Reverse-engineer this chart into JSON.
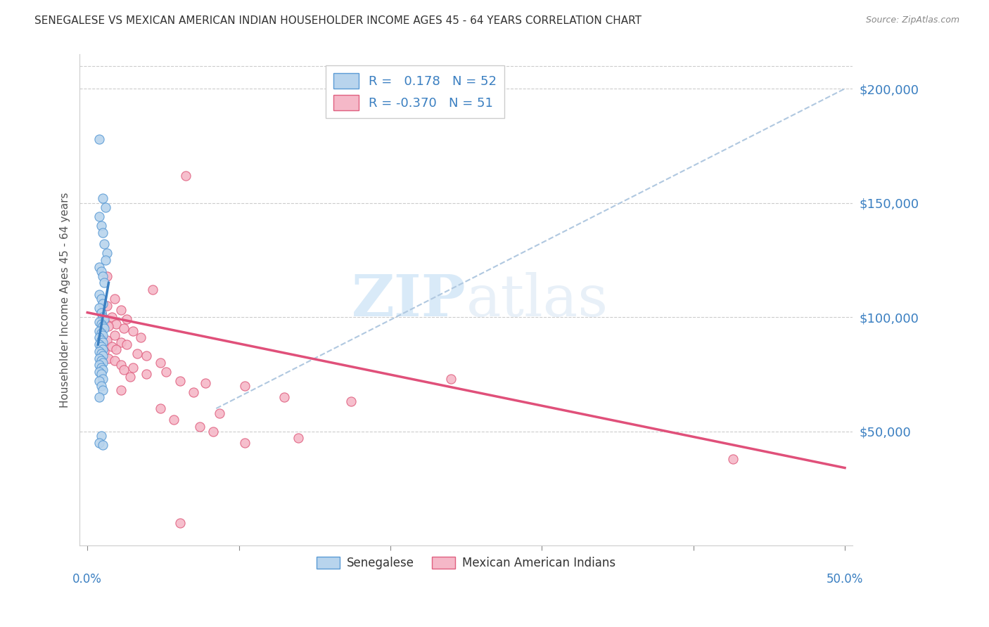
{
  "title": "SENEGALESE VS MEXICAN AMERICAN INDIAN HOUSEHOLDER INCOME AGES 45 - 64 YEARS CORRELATION CHART",
  "source": "Source: ZipAtlas.com",
  "ylabel": "Householder Income Ages 45 - 64 years",
  "ytick_values": [
    50000,
    100000,
    150000,
    200000
  ],
  "legend_blue_R": "0.178",
  "legend_blue_N": "52",
  "legend_pink_R": "-0.370",
  "legend_pink_N": "51",
  "watermark_zip": "ZIP",
  "watermark_atlas": "atlas",
  "blue_fill": "#b8d4ed",
  "blue_edge": "#5b9bd5",
  "pink_fill": "#f5b8c8",
  "pink_edge": "#e06080",
  "blue_line_color": "#3a7fc1",
  "pink_line_color": "#e0507a",
  "dashed_color": "#b0c8e0",
  "blue_scatter": [
    [
      0.008,
      178000
    ],
    [
      0.01,
      152000
    ],
    [
      0.012,
      148000
    ],
    [
      0.008,
      144000
    ],
    [
      0.009,
      140000
    ],
    [
      0.01,
      137000
    ],
    [
      0.011,
      132000
    ],
    [
      0.013,
      128000
    ],
    [
      0.008,
      122000
    ],
    [
      0.009,
      120000
    ],
    [
      0.01,
      118000
    ],
    [
      0.011,
      115000
    ],
    [
      0.012,
      125000
    ],
    [
      0.008,
      110000
    ],
    [
      0.009,
      108000
    ],
    [
      0.01,
      106000
    ],
    [
      0.008,
      104000
    ],
    [
      0.009,
      102000
    ],
    [
      0.01,
      100000
    ],
    [
      0.011,
      99000
    ],
    [
      0.008,
      98000
    ],
    [
      0.009,
      97000
    ],
    [
      0.01,
      96000
    ],
    [
      0.011,
      95000
    ],
    [
      0.008,
      94000
    ],
    [
      0.009,
      93000
    ],
    [
      0.01,
      92000
    ],
    [
      0.008,
      91000
    ],
    [
      0.009,
      90000
    ],
    [
      0.01,
      89000
    ],
    [
      0.008,
      88000
    ],
    [
      0.009,
      87000
    ],
    [
      0.01,
      86000
    ],
    [
      0.008,
      85000
    ],
    [
      0.009,
      84000
    ],
    [
      0.01,
      83000
    ],
    [
      0.008,
      82000
    ],
    [
      0.009,
      81000
    ],
    [
      0.01,
      80000
    ],
    [
      0.008,
      79000
    ],
    [
      0.009,
      78000
    ],
    [
      0.01,
      77000
    ],
    [
      0.008,
      76000
    ],
    [
      0.009,
      75000
    ],
    [
      0.01,
      73000
    ],
    [
      0.008,
      72000
    ],
    [
      0.009,
      70000
    ],
    [
      0.01,
      68000
    ],
    [
      0.008,
      65000
    ],
    [
      0.009,
      48000
    ],
    [
      0.008,
      45000
    ],
    [
      0.01,
      44000
    ]
  ],
  "pink_scatter": [
    [
      0.065,
      162000
    ],
    [
      0.013,
      118000
    ],
    [
      0.043,
      112000
    ],
    [
      0.018,
      108000
    ],
    [
      0.013,
      105000
    ],
    [
      0.022,
      103000
    ],
    [
      0.009,
      102000
    ],
    [
      0.016,
      100000
    ],
    [
      0.026,
      99000
    ],
    [
      0.011,
      98000
    ],
    [
      0.019,
      97000
    ],
    [
      0.014,
      96000
    ],
    [
      0.024,
      95000
    ],
    [
      0.03,
      94000
    ],
    [
      0.009,
      93000
    ],
    [
      0.018,
      92000
    ],
    [
      0.035,
      91000
    ],
    [
      0.013,
      90000
    ],
    [
      0.022,
      89000
    ],
    [
      0.026,
      88000
    ],
    [
      0.016,
      87000
    ],
    [
      0.019,
      86000
    ],
    [
      0.011,
      85000
    ],
    [
      0.033,
      84000
    ],
    [
      0.039,
      83000
    ],
    [
      0.014,
      82000
    ],
    [
      0.018,
      81000
    ],
    [
      0.048,
      80000
    ],
    [
      0.022,
      79000
    ],
    [
      0.03,
      78000
    ],
    [
      0.024,
      77000
    ],
    [
      0.052,
      76000
    ],
    [
      0.039,
      75000
    ],
    [
      0.028,
      74000
    ],
    [
      0.24,
      73000
    ],
    [
      0.061,
      72000
    ],
    [
      0.078,
      71000
    ],
    [
      0.104,
      70000
    ],
    [
      0.022,
      68000
    ],
    [
      0.07,
      67000
    ],
    [
      0.13,
      65000
    ],
    [
      0.174,
      63000
    ],
    [
      0.048,
      60000
    ],
    [
      0.087,
      58000
    ],
    [
      0.057,
      55000
    ],
    [
      0.074,
      52000
    ],
    [
      0.083,
      50000
    ],
    [
      0.139,
      47000
    ],
    [
      0.104,
      45000
    ],
    [
      0.426,
      38000
    ],
    [
      0.061,
      10000
    ]
  ],
  "blue_line": {
    "x0": 0.007,
    "x1": 0.014,
    "y0": 88000,
    "y1": 115000
  },
  "pink_line": {
    "x0": 0.0,
    "x1": 0.5,
    "y0": 102000,
    "y1": 34000
  },
  "dashed_line": {
    "x0": 0.085,
    "x1": 0.5,
    "y0": 60000,
    "y1": 200000
  },
  "xlim": [
    -0.005,
    0.505
  ],
  "ylim": [
    0,
    215000
  ],
  "ytick_right_labels": [
    "$50,000",
    "$100,000",
    "$150,000",
    "$200,000"
  ]
}
